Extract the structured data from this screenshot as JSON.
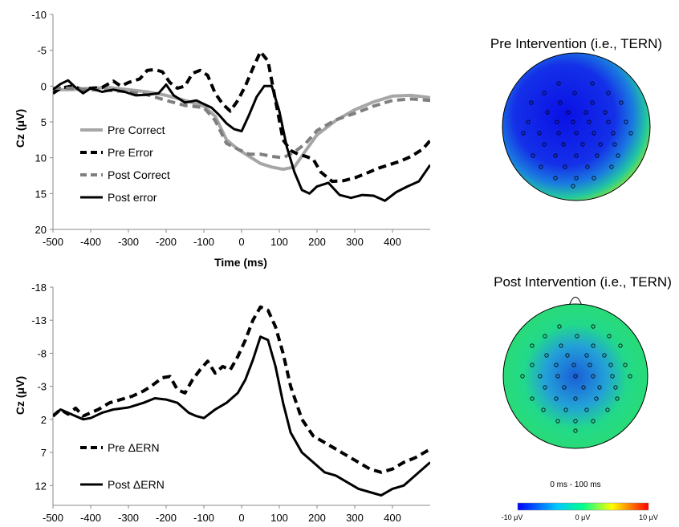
{
  "colors": {
    "pre_correct": "#a6a6a6",
    "pre_error": "#000000",
    "post_correct": "#7f7f7f",
    "post_error": "#000000",
    "colorbar_stops": [
      "#0000ff",
      "#00c8ff",
      "#00ff8c",
      "#ffff00",
      "#ff0000"
    ]
  },
  "chart_data": [
    {
      "type": "line",
      "ylabel": "Cz (μV)",
      "xlabel": "Time (ms)",
      "xlim": [
        -500,
        500
      ],
      "ylim": [
        -10,
        20
      ],
      "y_inverted": true,
      "x_ticks": [
        "-500",
        "-400",
        "-300",
        "-200",
        "-100",
        "0",
        "100",
        "200",
        "300",
        "400"
      ],
      "y_ticks": [
        "-10",
        "-5",
        "0",
        "5",
        "10",
        "15",
        "20"
      ],
      "legend": "left",
      "series": [
        {
          "name": "Pre Correct",
          "style": "solid",
          "x": [
            -500,
            -450,
            -400,
            -350,
            -300,
            -250,
            -200,
            -150,
            -100,
            -70,
            -40,
            -10,
            20,
            50,
            80,
            110,
            140,
            170,
            200,
            250,
            300,
            350,
            400,
            450,
            500
          ],
          "y": [
            0.5,
            0.5,
            0.3,
            0.2,
            0.5,
            0.8,
            1.3,
            2.0,
            2.8,
            4.2,
            7.5,
            8.8,
            9.8,
            10.8,
            11.3,
            11.6,
            11.3,
            9.0,
            6.8,
            4.8,
            3.3,
            2.2,
            1.4,
            1.3,
            1.6
          ]
        },
        {
          "name": "Pre Error",
          "style": "dashed",
          "x": [
            -500,
            -480,
            -450,
            -420,
            -400,
            -370,
            -340,
            -320,
            -300,
            -270,
            -250,
            -230,
            -210,
            -190,
            -170,
            -150,
            -130,
            -110,
            -90,
            -70,
            -50,
            -30,
            -10,
            10,
            30,
            50,
            70,
            90,
            110,
            130,
            150,
            170,
            190,
            210,
            240,
            270,
            300,
            330,
            360,
            390,
            420,
            450,
            480,
            500
          ],
          "y": [
            1.0,
            0.3,
            0.0,
            0.5,
            0.3,
            0.2,
            -0.7,
            0.0,
            -0.5,
            -1.0,
            -2.2,
            -2.3,
            -2.0,
            -0.5,
            0.3,
            0.0,
            -1.8,
            -2.2,
            -1.5,
            1.0,
            2.5,
            3.5,
            2.0,
            0.0,
            -2.5,
            -4.8,
            -3.5,
            2.0,
            7.5,
            9.0,
            9.5,
            9.8,
            10.2,
            12.0,
            13.3,
            13.2,
            12.8,
            12.2,
            11.5,
            11.0,
            10.5,
            9.8,
            8.8,
            7.6
          ]
        },
        {
          "name": "Post Correct",
          "style": "dashed",
          "x": [
            -500,
            -450,
            -400,
            -350,
            -300,
            -250,
            -200,
            -150,
            -100,
            -70,
            -40,
            -10,
            20,
            50,
            80,
            110,
            140,
            170,
            200,
            250,
            300,
            350,
            400,
            450,
            500
          ],
          "y": [
            0.3,
            0.3,
            0.5,
            0.6,
            0.8,
            1.2,
            2.0,
            2.7,
            3.0,
            4.8,
            8.0,
            8.8,
            9.5,
            9.5,
            9.8,
            10.0,
            9.2,
            8.0,
            6.2,
            4.7,
            3.8,
            2.8,
            2.0,
            1.8,
            2.0
          ]
        },
        {
          "name": "Post error",
          "style": "solid",
          "x": [
            -500,
            -480,
            -460,
            -440,
            -420,
            -400,
            -370,
            -340,
            -310,
            -280,
            -250,
            -220,
            -200,
            -180,
            -150,
            -120,
            -100,
            -80,
            -60,
            -40,
            -20,
            0,
            20,
            40,
            60,
            80,
            100,
            120,
            140,
            160,
            180,
            200,
            230,
            260,
            290,
            320,
            350,
            380,
            410,
            440,
            470,
            500
          ],
          "y": [
            0.5,
            -0.3,
            -0.8,
            0.2,
            1.0,
            0.3,
            0.8,
            0.5,
            0.8,
            1.3,
            1.2,
            1.0,
            -0.2,
            1.3,
            2.3,
            2.0,
            2.5,
            3.0,
            4.0,
            5.2,
            6.0,
            6.3,
            4.0,
            1.5,
            0.0,
            0.0,
            3.5,
            8.5,
            12.0,
            14.5,
            15.0,
            14.0,
            13.5,
            15.2,
            15.6,
            15.2,
            15.3,
            16.0,
            14.8,
            14.0,
            13.3,
            11.0
          ]
        }
      ]
    },
    {
      "type": "line",
      "ylabel": "Cz (μV)",
      "xlim": [
        -500,
        500
      ],
      "ylim": [
        -18,
        15
      ],
      "y_inverted": true,
      "x_ticks": [
        "-500",
        "-400",
        "-300",
        "-200",
        "-100",
        "0",
        "100",
        "200",
        "300",
        "400"
      ],
      "y_ticks": [
        "-18",
        "-13",
        "-8",
        "-3",
        "2",
        "7",
        "12"
      ],
      "legend": "bottom-left",
      "series": [
        {
          "name": "Pre ΔERN",
          "style": "dashed",
          "x": [
            -500,
            -480,
            -460,
            -440,
            -420,
            -400,
            -380,
            -350,
            -320,
            -290,
            -260,
            -240,
            -210,
            -190,
            -170,
            -150,
            -130,
            -110,
            -90,
            -70,
            -50,
            -30,
            -10,
            10,
            30,
            50,
            70,
            90,
            110,
            130,
            160,
            190,
            220,
            250,
            280,
            310,
            340,
            370,
            400,
            430,
            460,
            500
          ],
          "y": [
            1.5,
            0.5,
            1.2,
            0.3,
            1.5,
            1.0,
            0.5,
            -0.5,
            -1.0,
            -1.5,
            -2.3,
            -3.0,
            -4.3,
            -4.5,
            -2.5,
            -2.0,
            -4.0,
            -5.5,
            -6.8,
            -5.0,
            -6.0,
            -5.5,
            -7.5,
            -10.0,
            -13.0,
            -15.0,
            -14.5,
            -12.0,
            -8.0,
            -3.0,
            2.0,
            4.5,
            5.5,
            6.5,
            7.5,
            8.5,
            9.5,
            10.0,
            9.5,
            8.5,
            7.8,
            6.5
          ]
        },
        {
          "name": "Post ΔERN",
          "style": "solid",
          "x": [
            -500,
            -480,
            -460,
            -440,
            -420,
            -400,
            -370,
            -340,
            -300,
            -260,
            -230,
            -200,
            -170,
            -140,
            -120,
            -100,
            -70,
            -40,
            -10,
            10,
            30,
            50,
            70,
            90,
            110,
            130,
            160,
            190,
            220,
            250,
            280,
            310,
            340,
            370,
            400,
            430,
            460,
            500
          ],
          "y": [
            1.5,
            0.5,
            1.0,
            1.5,
            2.0,
            1.8,
            1.0,
            0.5,
            0.2,
            -0.5,
            -1.2,
            -1.0,
            -0.5,
            1.0,
            1.5,
            1.8,
            0.5,
            -0.5,
            -2.0,
            -4.0,
            -7.0,
            -10.5,
            -10.0,
            -6.0,
            -0.5,
            4.0,
            7.0,
            8.5,
            10.0,
            10.5,
            11.5,
            12.5,
            13.0,
            13.5,
            12.5,
            12.0,
            10.5,
            8.5
          ]
        }
      ]
    }
  ],
  "topomaps": [
    {
      "title": "Pre Intervention (i.e., TERN)",
      "background_color": "#3aaa66",
      "blob_color": "#0a10e6"
    },
    {
      "title": "Post Intervention (i.e., TERN)",
      "background_color": "#22d98a",
      "blob_color": "#1a5ed8"
    }
  ],
  "colorbar": {
    "range_label": "0 ms - 100 ms",
    "min_label": "-10 μV",
    "mid_label": "0 μV",
    "max_label": "10 μV"
  }
}
